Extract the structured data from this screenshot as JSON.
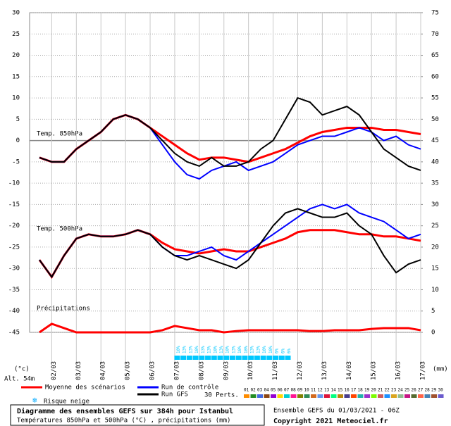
{
  "chart_data": {
    "type": "line",
    "panel_labels": {
      "t850": "Temp. 850hPa",
      "t500": "Temp. 500hPa",
      "precip": "Précipitations",
      "snow": "Risque neige",
      "y_unit": "(°c)",
      "altitude": "Alt. 54m",
      "y2_unit": "(mm)"
    },
    "xlim": [
      1.1,
      17
    ],
    "xticks": [
      {
        "value": 2,
        "label": "02/03"
      },
      {
        "value": 3,
        "label": "03/03"
      },
      {
        "value": 4,
        "label": "04/03"
      },
      {
        "value": 5,
        "label": "05/03"
      },
      {
        "value": 6,
        "label": "06/03"
      },
      {
        "value": 7,
        "label": "07/03"
      },
      {
        "value": 8,
        "label": "08/03"
      },
      {
        "value": 9,
        "label": "09/03"
      },
      {
        "value": 10,
        "label": "10/03"
      },
      {
        "value": 11,
        "label": "11/03"
      },
      {
        "value": 12,
        "label": "12/03"
      },
      {
        "value": 13,
        "label": "13/03"
      },
      {
        "value": 14,
        "label": "14/03"
      },
      {
        "value": 15,
        "label": "15/03"
      },
      {
        "value": 16,
        "label": "16/03"
      },
      {
        "value": 17,
        "label": "17/03"
      }
    ],
    "ylim": [
      -45,
      30
    ],
    "yticks": [
      -45,
      -40,
      -35,
      -30,
      -25,
      -20,
      -15,
      -10,
      -5,
      0,
      5,
      10,
      15,
      20,
      25,
      30
    ],
    "y2lim": [
      0,
      75
    ],
    "y2ticks": [
      0,
      5,
      10,
      15,
      20,
      25,
      30,
      35,
      40,
      45,
      50,
      55,
      60,
      65,
      70,
      75
    ],
    "grid": true,
    "x": [
      1.5,
      2,
      2.5,
      3,
      3.5,
      4,
      4.5,
      5,
      5.5,
      6,
      6.5,
      7,
      7.5,
      8,
      8.5,
      9,
      9.5,
      10,
      10.5,
      11,
      11.5,
      12,
      12.5,
      13,
      13.5,
      14,
      14.5,
      15,
      15.5,
      16,
      16.5,
      17
    ],
    "series": [
      {
        "name": "Moyenne des scénarios",
        "color": "#ff0000",
        "values": [
          -4,
          -5,
          -5,
          -2,
          0,
          2,
          5,
          6,
          5,
          3,
          1,
          -1,
          -3,
          -4.5,
          -4,
          -4,
          -4.5,
          -5,
          -4,
          -3,
          -2,
          -0.5,
          1,
          2,
          2.5,
          3,
          3,
          3,
          2.5,
          2.5,
          2,
          1.5
        ]
      },
      {
        "name": "Run de contrôle",
        "color": "#0000ff",
        "values": [
          -4,
          -5,
          -5,
          -2,
          0,
          2,
          5,
          6,
          5,
          3,
          -1,
          -5,
          -8,
          -9,
          -7,
          -6,
          -5,
          -7,
          -6,
          -5,
          -3,
          -1,
          0,
          1,
          1,
          2,
          3,
          2,
          0,
          1,
          -1,
          -2
        ]
      },
      {
        "name": "Run GFS",
        "color": "#000000",
        "values": [
          -4,
          -5,
          -5,
          -2,
          0,
          2,
          5,
          6,
          5,
          3,
          0,
          -3,
          -5,
          -6,
          -4,
          -6,
          -6,
          -5,
          -2,
          0,
          5,
          10,
          9,
          6,
          7,
          8,
          6,
          2,
          -2,
          -4,
          -6,
          -7
        ]
      }
    ],
    "series_500": [
      {
        "color": "#ff0000",
        "values": [
          -28,
          -32,
          -27,
          -23,
          -22,
          -22.5,
          -22.5,
          -22,
          -21,
          -22,
          -24,
          -25.5,
          -26,
          -26.5,
          -26,
          -25.5,
          -26,
          -26,
          -25,
          -24,
          -23,
          -21.5,
          -21,
          -21,
          -21,
          -21.5,
          -22,
          -22,
          -22.5,
          -22.5,
          -23,
          -23.5
        ]
      },
      {
        "color": "#0000ff",
        "values": [
          -28,
          -32,
          -27,
          -23,
          -22,
          -22.5,
          -22.5,
          -22,
          -21,
          -22,
          -25,
          -27,
          -27,
          -26,
          -25,
          -27,
          -28,
          -26,
          -24,
          -22,
          -20,
          -18,
          -16,
          -15,
          -16,
          -15,
          -17,
          -18,
          -19,
          -21,
          -23,
          -22
        ]
      },
      {
        "color": "#000000",
        "values": [
          -28,
          -32,
          -27,
          -23,
          -22,
          -22.5,
          -22.5,
          -22,
          -21,
          -22,
          -25,
          -27,
          -28,
          -27,
          -28,
          -29,
          -30,
          -28,
          -24,
          -20,
          -17,
          -16,
          -17,
          -18,
          -18,
          -17,
          -20,
          -22,
          -27,
          -31,
          -29,
          -28
        ]
      }
    ],
    "series_precip": [
      {
        "color": "#ff0000",
        "axis": "y2",
        "values": [
          0,
          2,
          1,
          0,
          0,
          0,
          0,
          0,
          0,
          0,
          0.5,
          1.5,
          1,
          0.5,
          0.5,
          0,
          0.3,
          0.5,
          0.5,
          0.5,
          0.5,
          0.5,
          0.3,
          0.3,
          0.5,
          0.5,
          0.5,
          0.8,
          1,
          1,
          1,
          0.5
        ]
      }
    ],
    "snow_risk": {
      "x": [
        7.1,
        7.35,
        7.6,
        7.85,
        8.1,
        8.35,
        8.6,
        8.85,
        9.1,
        9.35,
        9.6,
        9.85,
        10.1,
        10.35,
        10.6,
        10.85,
        11.1,
        11.35,
        11.6
      ],
      "values": [
        10,
        13,
        13,
        10,
        13,
        13,
        10,
        13,
        10,
        13,
        10,
        10,
        13,
        13,
        10,
        10,
        6,
        6,
        6
      ],
      "value_labels": [
        "10%",
        "13%",
        "13%",
        "10%",
        "13%",
        "13%",
        "10%",
        "13%",
        "10%",
        "13%",
        "10%",
        "10%",
        "13%",
        "13%",
        "10%",
        "10%",
        "6%",
        "6%",
        "6%"
      ],
      "color": "#00c8ff"
    },
    "perts": {
      "label": "30 Perts.",
      "names": [
        "01",
        "02",
        "03",
        "04",
        "05",
        "06",
        "07",
        "08",
        "09",
        "10",
        "11",
        "12",
        "13",
        "14",
        "15",
        "16",
        "17",
        "18",
        "19",
        "20",
        "21",
        "22",
        "23",
        "24",
        "25",
        "26",
        "27",
        "28",
        "29",
        "30"
      ],
      "colors": [
        "#ff8c00",
        "#228b22",
        "#4169e1",
        "#8b4513",
        "#9400d3",
        "#ffd700",
        "#00ced1",
        "#ff1493",
        "#808000",
        "#2e8b57",
        "#d2691e",
        "#6495ed",
        "#dc143c",
        "#00ff7f",
        "#b8860b",
        "#483d8b",
        "#ff4500",
        "#20b2aa",
        "#9932cc",
        "#7cfc00",
        "#cd5c5c",
        "#1e90ff",
        "#daa520",
        "#8fbc8f",
        "#c71585",
        "#556b2f",
        "#ff6347",
        "#4682b4",
        "#a0522d",
        "#6a5acd"
      ]
    },
    "footer": {
      "title": "Diagramme des ensembles GEFS sur 384h pour Istanbul",
      "subtitle": "Températures 850hPa et 500hPa (°C) , précipitations (mm)",
      "run": "Ensemble GEFS du 01/03/2021 - 06Z",
      "copyright": "Copyright 2021 Meteociel.fr"
    }
  }
}
